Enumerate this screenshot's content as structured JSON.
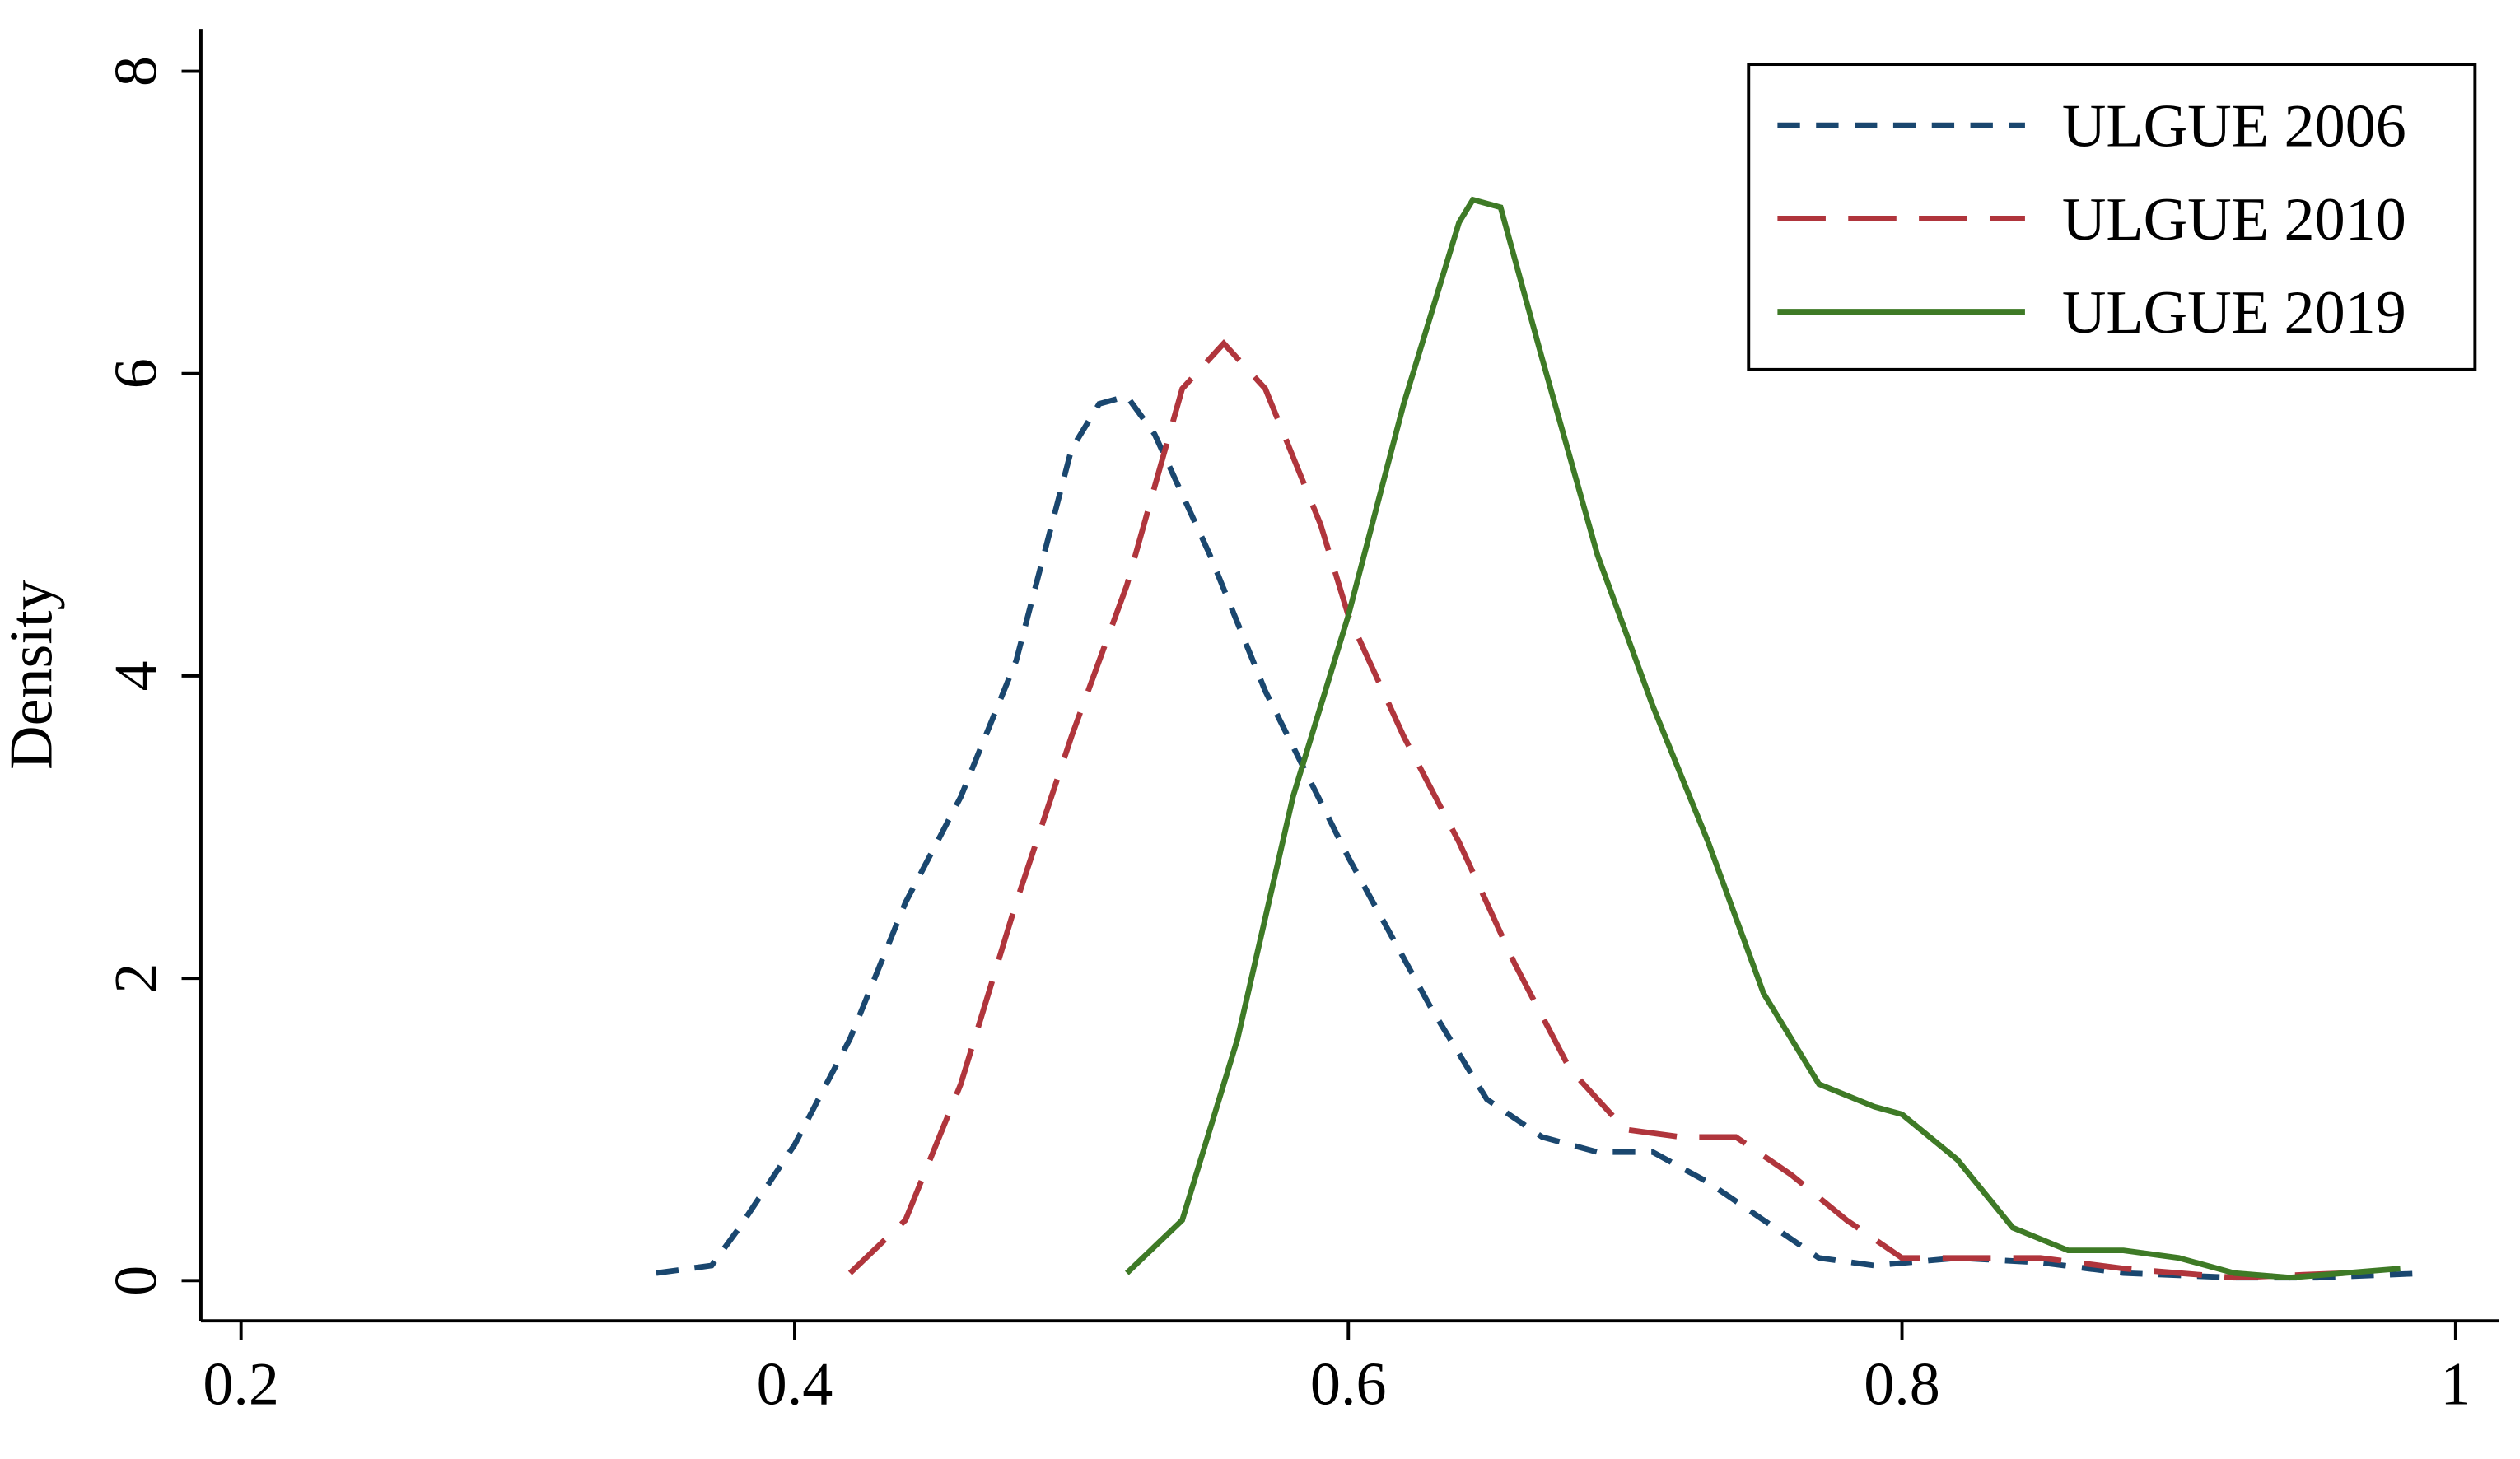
{
  "chart_data": {
    "type": "line",
    "ylabel": "Density",
    "xlim": [
      0.1855,
      1.0157
    ],
    "xticks": [
      0.2,
      0.4,
      0.6,
      0.8,
      1
    ],
    "ylim": [
      -0.266,
      8.28
    ],
    "yticks": [
      0,
      2,
      4,
      6,
      8
    ],
    "legend": "top-right",
    "series": [
      {
        "name": "ULGUE 2006",
        "color": "#1a476f",
        "dash": "short",
        "x": [
          0.35,
          0.37,
          0.38,
          0.4,
          0.42,
          0.44,
          0.46,
          0.48,
          0.5,
          0.51,
          0.52,
          0.53,
          0.55,
          0.57,
          0.6,
          0.63,
          0.65,
          0.67,
          0.69,
          0.71,
          0.73,
          0.75,
          0.77,
          0.79,
          0.82,
          0.85,
          0.88,
          0.92,
          0.95,
          0.99
        ],
        "values": [
          0.05,
          0.1,
          0.35,
          0.9,
          1.6,
          2.5,
          3.2,
          4.1,
          5.5,
          5.8,
          5.85,
          5.6,
          4.8,
          3.9,
          2.8,
          1.8,
          1.2,
          0.95,
          0.85,
          0.85,
          0.65,
          0.4,
          0.15,
          0.1,
          0.15,
          0.12,
          0.05,
          0.02,
          0.02,
          0.05
        ]
      },
      {
        "name": "ULGUE 2010",
        "color": "#b0353c",
        "dash": "long",
        "x": [
          0.42,
          0.44,
          0.46,
          0.48,
          0.5,
          0.52,
          0.54,
          0.555,
          0.57,
          0.59,
          0.6,
          0.62,
          0.64,
          0.66,
          0.68,
          0.7,
          0.72,
          0.74,
          0.76,
          0.78,
          0.8,
          0.82,
          0.85,
          0.88,
          0.92,
          0.96
        ],
        "values": [
          0.05,
          0.4,
          1.3,
          2.5,
          3.6,
          4.6,
          5.9,
          6.2,
          5.9,
          5.0,
          4.4,
          3.6,
          2.9,
          2.1,
          1.4,
          1.0,
          0.95,
          0.95,
          0.7,
          0.4,
          0.15,
          0.15,
          0.15,
          0.08,
          0.02,
          0.05
        ]
      },
      {
        "name": "ULGUE 2019",
        "color": "#3e7a26",
        "dash": "solid",
        "x": [
          0.52,
          0.54,
          0.56,
          0.58,
          0.6,
          0.62,
          0.64,
          0.645,
          0.655,
          0.67,
          0.69,
          0.71,
          0.73,
          0.75,
          0.77,
          0.79,
          0.8,
          0.82,
          0.84,
          0.86,
          0.88,
          0.9,
          0.92,
          0.94,
          0.96,
          0.98
        ],
        "values": [
          0.05,
          0.4,
          1.6,
          3.2,
          4.4,
          5.8,
          7.0,
          7.15,
          7.1,
          6.1,
          4.8,
          3.8,
          2.9,
          1.9,
          1.3,
          1.15,
          1.1,
          0.8,
          0.35,
          0.2,
          0.2,
          0.15,
          0.05,
          0.02,
          0.05,
          0.08
        ]
      }
    ]
  }
}
